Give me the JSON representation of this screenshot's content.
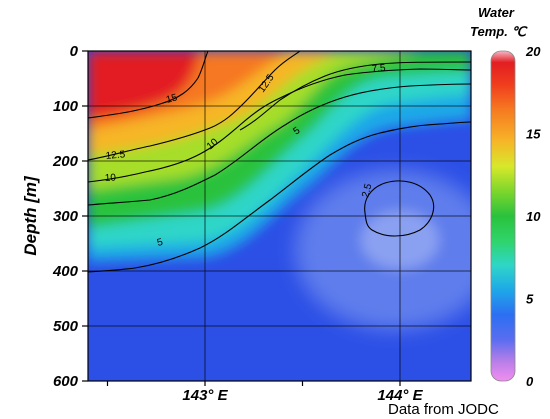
{
  "chart_data": {
    "type": "heatmap",
    "ylabel": "Depth [m]",
    "x_ticks": [
      {
        "value": 143,
        "label": "143° E"
      },
      {
        "value": 144,
        "label": "144° E"
      }
    ],
    "y_ticks": [
      0,
      100,
      200,
      300,
      400,
      500,
      600
    ],
    "ylim": [
      0,
      600
    ],
    "y_inverted": true,
    "colorbar": {
      "title_line1": "Water",
      "title_line2": "Temp. ℃",
      "ticks": [
        0,
        5,
        10,
        15,
        20
      ],
      "range": [
        0,
        20
      ],
      "stops": [
        {
          "value": 0,
          "color": "#f28ef0"
        },
        {
          "value": 1.2,
          "color": "#b77ee8"
        },
        {
          "value": 2.5,
          "color": "#5a6df0"
        },
        {
          "value": 4,
          "color": "#2c6ff2"
        },
        {
          "value": 5.5,
          "color": "#1ea7e8"
        },
        {
          "value": 7,
          "color": "#2fd6c8"
        },
        {
          "value": 8.5,
          "color": "#2fd46a"
        },
        {
          "value": 10,
          "color": "#2ac23c"
        },
        {
          "value": 11.5,
          "color": "#7ed62c"
        },
        {
          "value": 13,
          "color": "#d7e82a"
        },
        {
          "value": 14.5,
          "color": "#f6b628"
        },
        {
          "value": 16.5,
          "color": "#f67820"
        },
        {
          "value": 18,
          "color": "#f03c1e"
        },
        {
          "value": 19.3,
          "color": "#e21e22"
        },
        {
          "value": 20,
          "color": "#f6b8c8"
        }
      ]
    },
    "contours": [
      {
        "level": 15,
        "label": "15"
      },
      {
        "level": 12.5,
        "label": "12.5"
      },
      {
        "level": 12.5,
        "label": "12.5"
      },
      {
        "level": 10,
        "label": "10"
      },
      {
        "level": 10,
        "label": "10"
      },
      {
        "level": 7.5,
        "label": "7.5"
      },
      {
        "level": 5,
        "label": "5"
      },
      {
        "level": 5,
        "label": "5"
      },
      {
        "level": 2.5,
        "label": "2.5"
      }
    ],
    "source_note": "Data from JODC"
  }
}
